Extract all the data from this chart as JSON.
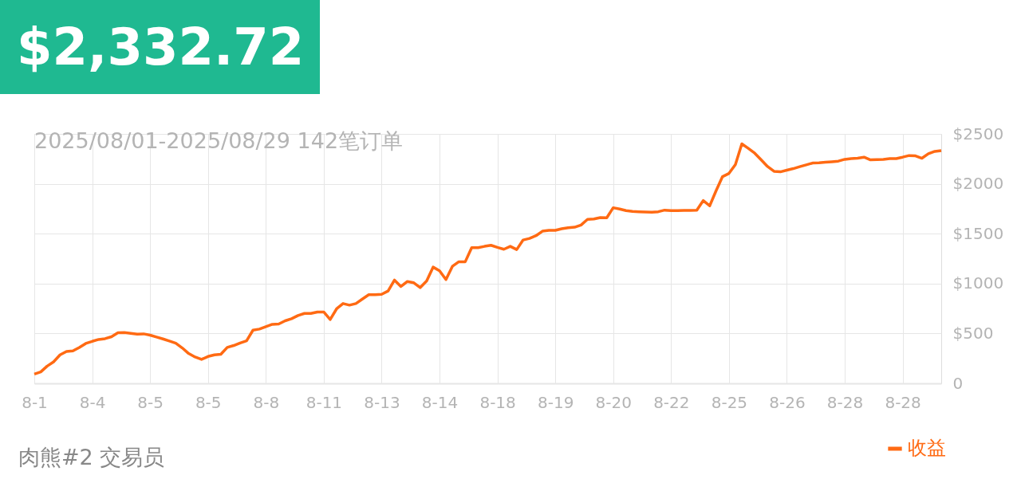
{
  "chart_data": {
    "type": "line",
    "title": "$2,332.72",
    "subtitle": "2025/08/01-2025/08/29 142笔订单",
    "annotations": [
      "肉熊#2     交易员"
    ],
    "categories": [
      "8-1",
      null,
      null,
      null,
      null,
      null,
      null,
      null,
      null,
      "8-4",
      null,
      null,
      null,
      null,
      null,
      null,
      null,
      null,
      "8-5",
      null,
      null,
      null,
      null,
      null,
      null,
      null,
      null,
      "8-5",
      null,
      null,
      null,
      null,
      null,
      null,
      null,
      null,
      "8-8",
      null,
      null,
      null,
      null,
      null,
      null,
      null,
      null,
      "8-11",
      null,
      null,
      null,
      null,
      null,
      null,
      null,
      null,
      "8-13",
      null,
      null,
      null,
      null,
      null,
      null,
      null,
      null,
      "8-14",
      null,
      null,
      null,
      null,
      null,
      null,
      null,
      null,
      "8-18",
      null,
      null,
      null,
      null,
      null,
      null,
      null,
      null,
      "8-19",
      null,
      null,
      null,
      null,
      null,
      null,
      null,
      null,
      "8-20",
      null,
      null,
      null,
      null,
      null,
      null,
      null,
      null,
      "8-22",
      null,
      null,
      null,
      null,
      null,
      null,
      null,
      null,
      "8-25",
      null,
      null,
      null,
      null,
      null,
      null,
      null,
      null,
      "8-26",
      null,
      null,
      null,
      null,
      null,
      null,
      null,
      null,
      "8-28",
      null,
      null,
      null,
      null,
      null,
      null,
      null,
      null,
      "8-28",
      null,
      null,
      null,
      null,
      null,
      null
    ],
    "series": [
      {
        "name": "收益",
        "color": "#ff6a13",
        "values": [
          93,
          115,
          173,
          216,
          285,
          320,
          325,
          360,
          400,
          421,
          440,
          448,
          467,
          507,
          509,
          501,
          493,
          496,
          483,
          464,
          445,
          424,
          403,
          355,
          299,
          264,
          240,
          269,
          285,
          291,
          360,
          379,
          405,
          427,
          533,
          544,
          568,
          592,
          595,
          627,
          648,
          680,
          701,
          701,
          715,
          715,
          640,
          747,
          800,
          784,
          800,
          845,
          888,
          888,
          893,
          925,
          1035,
          971,
          1021,
          1008,
          960,
          1027,
          1165,
          1128,
          1040,
          1173,
          1219,
          1219,
          1360,
          1360,
          1373,
          1384,
          1363,
          1344,
          1373,
          1341,
          1437,
          1453,
          1480,
          1525,
          1533,
          1533,
          1549,
          1560,
          1565,
          1587,
          1643,
          1648,
          1661,
          1659,
          1760,
          1747,
          1731,
          1723,
          1720,
          1717,
          1715,
          1720,
          1736,
          1731,
          1731,
          1733,
          1733,
          1736,
          1832,
          1779,
          1931,
          2072,
          2104,
          2192,
          2400,
          2355,
          2307,
          2240,
          2173,
          2125,
          2120,
          2136,
          2152,
          2171,
          2189,
          2208,
          2211,
          2216,
          2221,
          2227,
          2245,
          2253,
          2256,
          2267,
          2240,
          2243,
          2245,
          2253,
          2253,
          2267,
          2283,
          2280,
          2256,
          2301,
          2325,
          2333
        ]
      }
    ],
    "ylim": [
      0,
      2500
    ],
    "yticks": [
      {
        "value": 0,
        "label": "0"
      },
      {
        "value": 500,
        "label": "$500"
      },
      {
        "value": 1000,
        "label": "$1000"
      },
      {
        "value": 1500,
        "label": "$1500"
      },
      {
        "value": 2000,
        "label": "$2000"
      },
      {
        "value": 2500,
        "label": "$2500"
      }
    ],
    "grid": true,
    "legend": "bottom right"
  }
}
